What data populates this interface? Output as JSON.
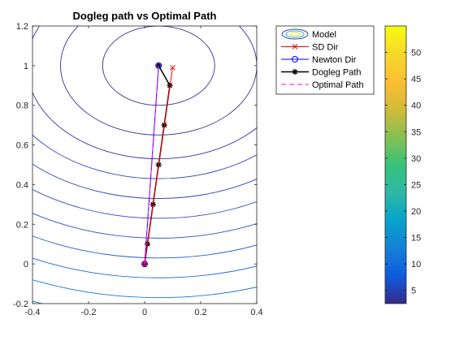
{
  "chart_data": {
    "type": "line",
    "title": "Dogleg path vs Optimal Path",
    "xlim": [
      -0.4,
      0.4
    ],
    "ylim": [
      -0.2,
      1.2
    ],
    "xticks": [
      -0.4,
      -0.2,
      0,
      0.2,
      0.4
    ],
    "xtick_labels": [
      "-0.4",
      "-0.2",
      "0",
      "0.2",
      "0.4"
    ],
    "yticks": [
      -0.2,
      0,
      0.2,
      0.4,
      0.6,
      0.8,
      1,
      1.2
    ],
    "ytick_labels": [
      "-0.2",
      "0",
      "0.2",
      "0.4",
      "0.6",
      "0.8",
      "1",
      "1.2"
    ],
    "contour_center": [
      0.05,
      1.0
    ],
    "contour_radii": [
      0.2,
      0.35,
      0.47,
      0.57,
      0.67,
      0.77,
      0.87,
      0.97,
      1.07,
      1.17,
      1.27
    ],
    "series": [
      {
        "name": "Model",
        "type": "contour"
      },
      {
        "name": "SD Dir",
        "color": "#ff0000",
        "marker": "x",
        "x": [
          0,
          0.1
        ],
        "y": [
          0,
          0.99
        ]
      },
      {
        "name": "Newton Dir",
        "color": "#0000ff",
        "marker": "o",
        "x": [
          0,
          0.05
        ],
        "y": [
          0,
          1.0
        ]
      },
      {
        "name": "Dogleg Path",
        "color": "#000000",
        "marker": "*",
        "x": [
          0,
          0.01,
          0.03,
          0.05,
          0.07,
          0.09,
          0.05
        ],
        "y": [
          0,
          0.1,
          0.3,
          0.5,
          0.7,
          0.9,
          1.0
        ]
      },
      {
        "name": "Optimal Path",
        "color": "#ff00ff",
        "dash": true,
        "x": [
          0,
          0.05
        ],
        "y": [
          0,
          1.0
        ]
      }
    ],
    "legend_position": "top-right-outside",
    "colorbar": {
      "min": 2.5,
      "max": 55,
      "ticks": [
        5,
        10,
        15,
        20,
        25,
        30,
        35,
        40,
        45,
        50
      ],
      "tick_labels": [
        "5",
        "10",
        "15",
        "20",
        "25",
        "30",
        "35",
        "40",
        "45",
        "50"
      ]
    },
    "grid": false
  }
}
